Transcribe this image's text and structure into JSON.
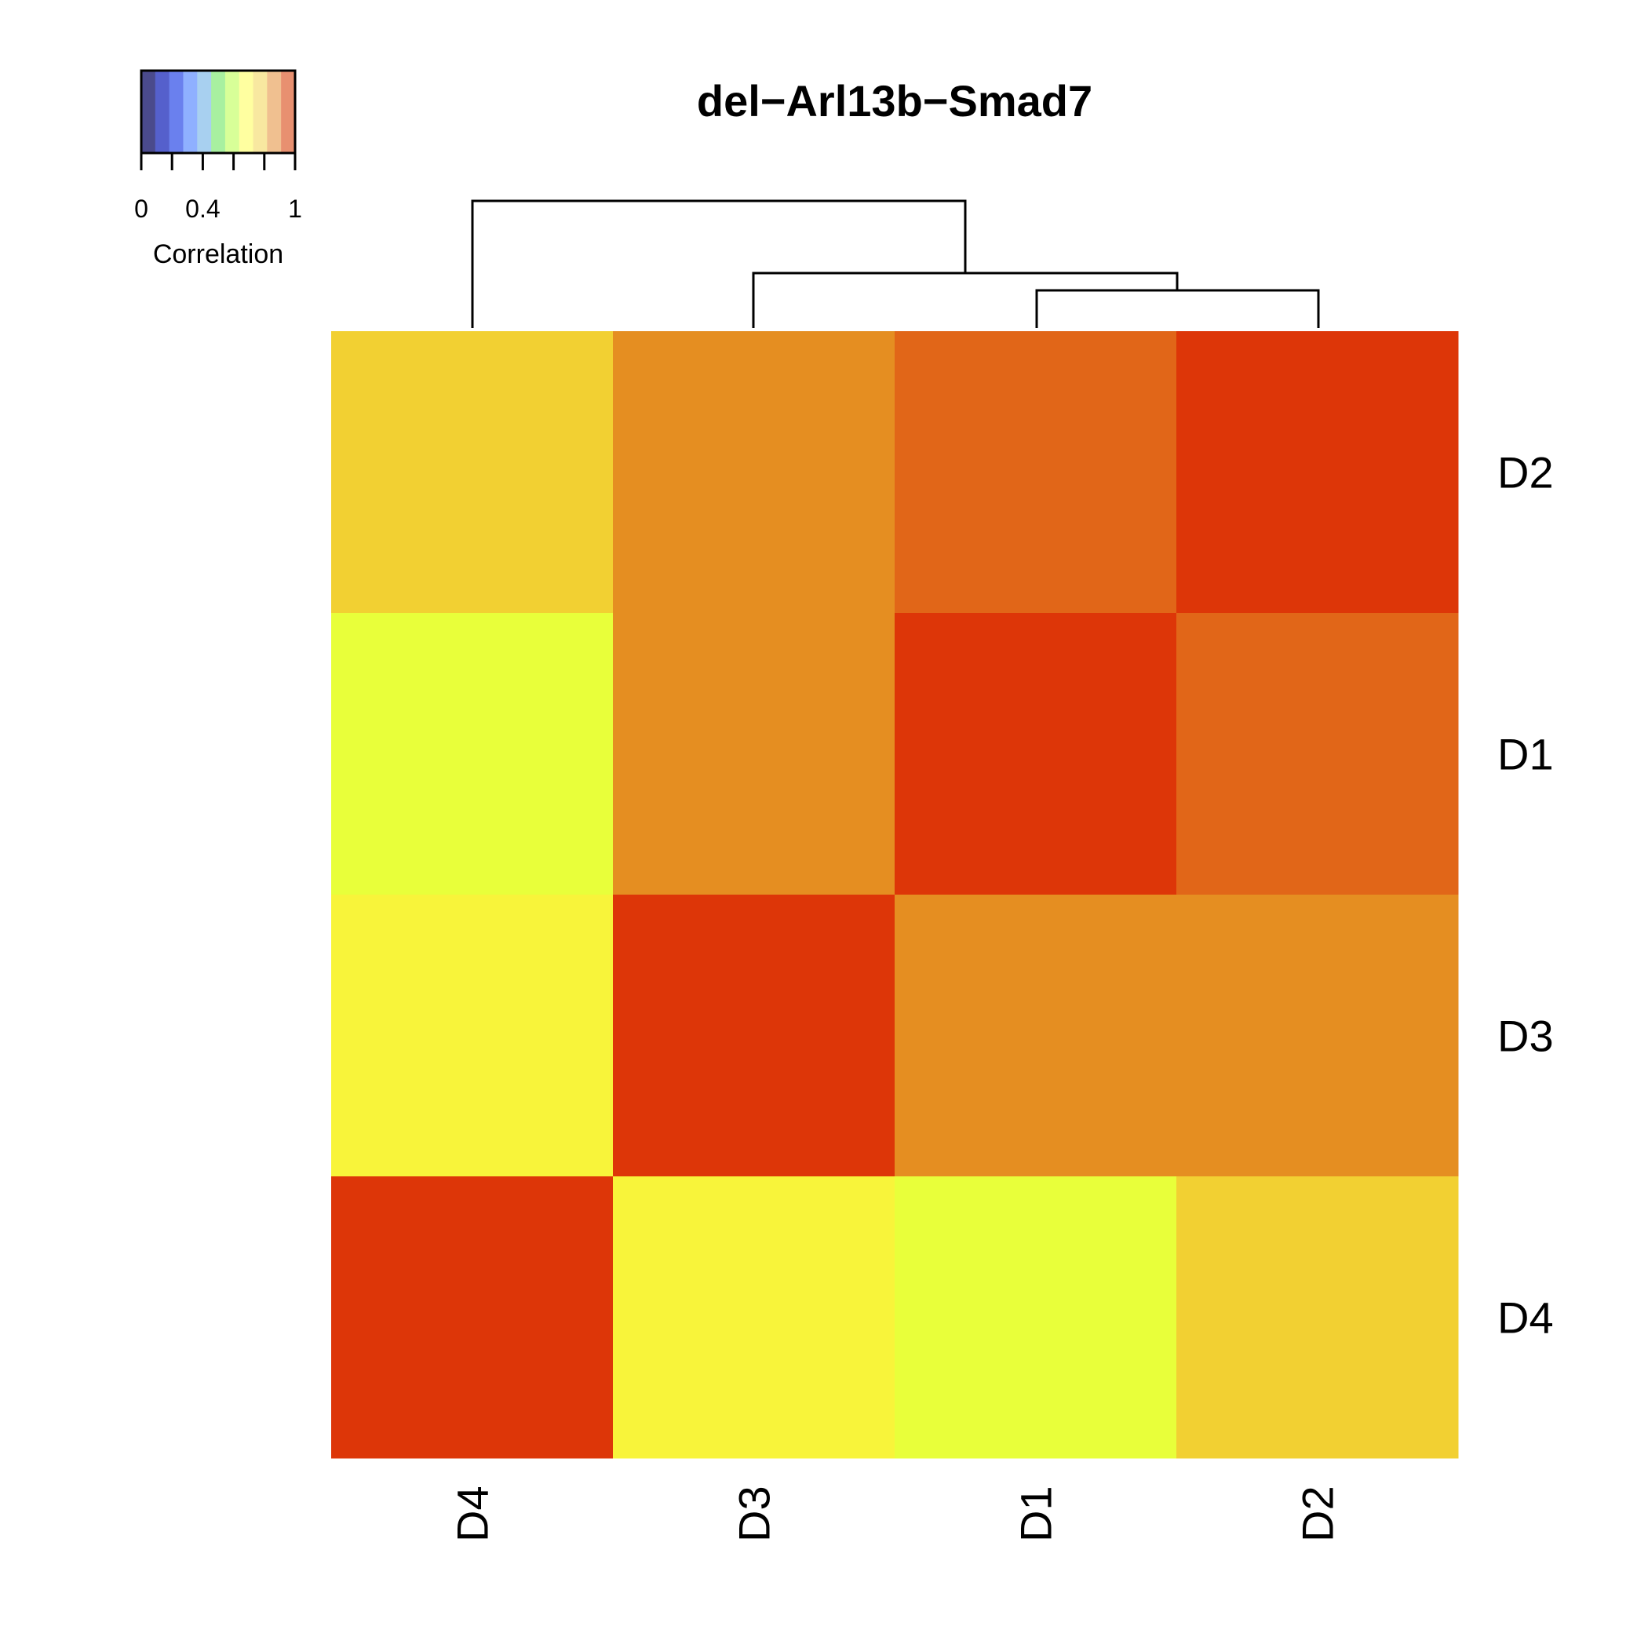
{
  "chart_data": {
    "type": "heatmap",
    "title": "del−Arl13b−Smad7",
    "columns": [
      "D4",
      "D3",
      "D1",
      "D2"
    ],
    "rows": [
      "D2",
      "D1",
      "D3",
      "D4"
    ],
    "values": [
      [
        0.86,
        0.93,
        0.96,
        1.0
      ],
      [
        0.8,
        0.93,
        1.0,
        0.96
      ],
      [
        0.82,
        1.0,
        0.93,
        0.93
      ],
      [
        1.0,
        0.82,
        0.8,
        0.86
      ]
    ],
    "legend": {
      "title": "Correlation",
      "tick_labels": [
        "0",
        "0.4",
        "1"
      ],
      "tick_values": [
        0,
        0.4,
        1
      ],
      "range": [
        0,
        1
      ],
      "colors": [
        "#4a4a8c",
        "#5560cc",
        "#6a80ee",
        "#8fb0ff",
        "#a8d0f0",
        "#a8f0a0",
        "#d8ff98",
        "#ffffa0",
        "#f8e8a0",
        "#f0c090",
        "#e89070"
      ]
    },
    "dendrogram": "((D3,(D1,D2)),D4)"
  }
}
